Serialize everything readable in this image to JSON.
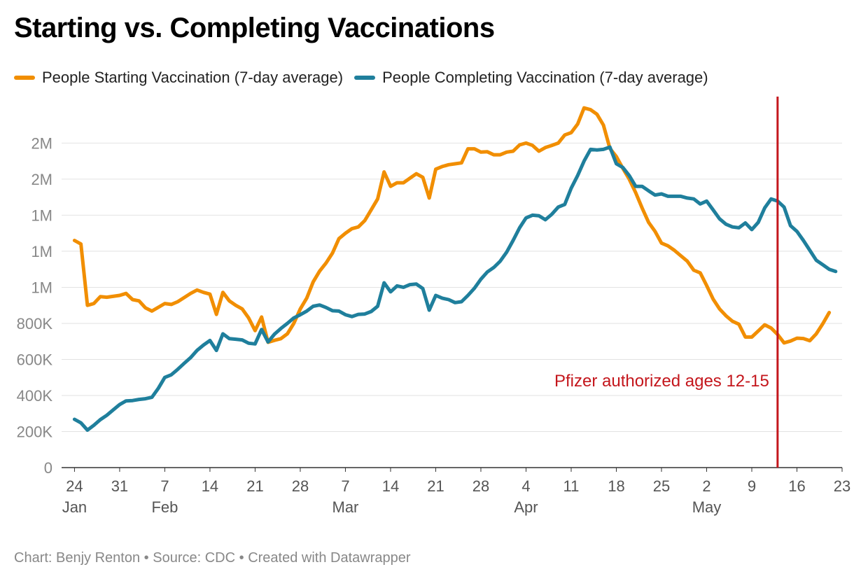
{
  "title": "Starting vs. Completing Vaccinations",
  "footer": {
    "prefix": "Chart: Benjy Renton",
    "sep": "•",
    "source": "Source: CDC",
    "credit": "Created with Datawrapper"
  },
  "colors": {
    "starting": "#f18e00",
    "completing": "#1f7f9c",
    "marker": "#c4161c",
    "grid": "#e2e2e2"
  },
  "chart_data": {
    "type": "line",
    "title": "Starting vs. Completing Vaccinations",
    "xlabel": "",
    "ylabel": "",
    "x_range": [
      "2021-01-22",
      "2021-05-23"
    ],
    "ylim": [
      0,
      2050000
    ],
    "grid": "horizontal",
    "legend_position": "top-left",
    "y_ticks": [
      {
        "value": 0,
        "label": "0"
      },
      {
        "value": 200000,
        "label": "200K"
      },
      {
        "value": 400000,
        "label": "400K"
      },
      {
        "value": 600000,
        "label": "600K"
      },
      {
        "value": 800000,
        "label": "800K"
      },
      {
        "value": 1000000,
        "label": "1M"
      },
      {
        "value": 1200000,
        "label": "1M"
      },
      {
        "value": 1400000,
        "label": "1M"
      },
      {
        "value": 1600000,
        "label": "2M"
      },
      {
        "value": 1800000,
        "label": "2M"
      }
    ],
    "x_ticks": [
      {
        "date": "2021-01-24",
        "day": "24",
        "month": "Jan"
      },
      {
        "date": "2021-01-31",
        "day": "31",
        "month": ""
      },
      {
        "date": "2021-02-07",
        "day": "7",
        "month": "Feb"
      },
      {
        "date": "2021-02-14",
        "day": "14",
        "month": ""
      },
      {
        "date": "2021-02-21",
        "day": "21",
        "month": ""
      },
      {
        "date": "2021-02-28",
        "day": "28",
        "month": ""
      },
      {
        "date": "2021-03-07",
        "day": "7",
        "month": "Mar"
      },
      {
        "date": "2021-03-14",
        "day": "14",
        "month": ""
      },
      {
        "date": "2021-03-21",
        "day": "21",
        "month": ""
      },
      {
        "date": "2021-03-28",
        "day": "28",
        "month": ""
      },
      {
        "date": "2021-04-04",
        "day": "4",
        "month": "Apr"
      },
      {
        "date": "2021-04-11",
        "day": "11",
        "month": ""
      },
      {
        "date": "2021-04-18",
        "day": "18",
        "month": ""
      },
      {
        "date": "2021-04-25",
        "day": "25",
        "month": ""
      },
      {
        "date": "2021-05-02",
        "day": "2",
        "month": "May"
      },
      {
        "date": "2021-05-09",
        "day": "9",
        "month": ""
      },
      {
        "date": "2021-05-16",
        "day": "16",
        "month": ""
      },
      {
        "date": "2021-05-23",
        "day": "23",
        "month": ""
      }
    ],
    "annotation": {
      "date": "2021-05-13",
      "label": "Pfizer authorized ages 12-15"
    },
    "series": [
      {
        "name": "People Starting Vaccination (7-day average)",
        "color": "#f18e00",
        "points": [
          [
            "2021-01-24",
            1260000
          ],
          [
            "2021-01-25",
            1240000
          ],
          [
            "2021-01-26",
            900000
          ],
          [
            "2021-01-27",
            910000
          ],
          [
            "2021-01-28",
            948000
          ],
          [
            "2021-01-29",
            945000
          ],
          [
            "2021-01-31",
            955000
          ],
          [
            "2021-02-01",
            966000
          ],
          [
            "2021-02-02",
            932000
          ],
          [
            "2021-02-03",
            925000
          ],
          [
            "2021-02-04",
            886000
          ],
          [
            "2021-02-05",
            868000
          ],
          [
            "2021-02-07",
            910000
          ],
          [
            "2021-02-08",
            905000
          ],
          [
            "2021-02-09",
            920000
          ],
          [
            "2021-02-11",
            966000
          ],
          [
            "2021-02-12",
            985000
          ],
          [
            "2021-02-13",
            972000
          ],
          [
            "2021-02-14",
            962000
          ],
          [
            "2021-02-15",
            850000
          ],
          [
            "2021-02-16",
            972000
          ],
          [
            "2021-02-17",
            925000
          ],
          [
            "2021-02-18",
            900000
          ],
          [
            "2021-02-19",
            880000
          ],
          [
            "2021-02-20",
            830000
          ],
          [
            "2021-02-21",
            760000
          ],
          [
            "2021-02-22",
            835000
          ],
          [
            "2021-02-23",
            695000
          ],
          [
            "2021-02-24",
            706000
          ],
          [
            "2021-02-25",
            715000
          ],
          [
            "2021-02-26",
            742000
          ],
          [
            "2021-02-27",
            800000
          ],
          [
            "2021-02-28",
            880000
          ],
          [
            "2021-03-01",
            940000
          ],
          [
            "2021-03-02",
            1030000
          ],
          [
            "2021-03-03",
            1090000
          ],
          [
            "2021-03-04",
            1135000
          ],
          [
            "2021-03-05",
            1190000
          ],
          [
            "2021-03-06",
            1270000
          ],
          [
            "2021-03-07",
            1300000
          ],
          [
            "2021-03-08",
            1325000
          ],
          [
            "2021-03-09",
            1335000
          ],
          [
            "2021-03-10",
            1370000
          ],
          [
            "2021-03-11",
            1430000
          ],
          [
            "2021-03-12",
            1490000
          ],
          [
            "2021-03-13",
            1640000
          ],
          [
            "2021-03-14",
            1560000
          ],
          [
            "2021-03-15",
            1580000
          ],
          [
            "2021-03-16",
            1580000
          ],
          [
            "2021-03-17",
            1605000
          ],
          [
            "2021-03-18",
            1630000
          ],
          [
            "2021-03-19",
            1610000
          ],
          [
            "2021-03-20",
            1495000
          ],
          [
            "2021-03-21",
            1655000
          ],
          [
            "2021-03-22",
            1670000
          ],
          [
            "2021-03-23",
            1680000
          ],
          [
            "2021-03-24",
            1685000
          ],
          [
            "2021-03-25",
            1690000
          ],
          [
            "2021-03-26",
            1768000
          ],
          [
            "2021-03-27",
            1768000
          ],
          [
            "2021-03-28",
            1750000
          ],
          [
            "2021-03-29",
            1752000
          ],
          [
            "2021-03-30",
            1735000
          ],
          [
            "2021-03-31",
            1735000
          ],
          [
            "2021-04-01",
            1750000
          ],
          [
            "2021-04-02",
            1755000
          ],
          [
            "2021-04-03",
            1790000
          ],
          [
            "2021-04-04",
            1800000
          ],
          [
            "2021-04-05",
            1787000
          ],
          [
            "2021-04-06",
            1755000
          ],
          [
            "2021-04-07",
            1775000
          ],
          [
            "2021-04-08",
            1787000
          ],
          [
            "2021-04-09",
            1800000
          ],
          [
            "2021-04-10",
            1845000
          ],
          [
            "2021-04-11",
            1858000
          ],
          [
            "2021-04-12",
            1905000
          ],
          [
            "2021-04-13",
            1995000
          ],
          [
            "2021-04-14",
            1985000
          ],
          [
            "2021-04-15",
            1960000
          ],
          [
            "2021-04-16",
            1900000
          ],
          [
            "2021-04-17",
            1770000
          ],
          [
            "2021-04-18",
            1725000
          ],
          [
            "2021-04-19",
            1660000
          ],
          [
            "2021-04-20",
            1600000
          ],
          [
            "2021-04-21",
            1525000
          ],
          [
            "2021-04-22",
            1440000
          ],
          [
            "2021-04-23",
            1360000
          ],
          [
            "2021-04-24",
            1310000
          ],
          [
            "2021-04-25",
            1245000
          ],
          [
            "2021-04-26",
            1230000
          ],
          [
            "2021-04-27",
            1205000
          ],
          [
            "2021-04-28",
            1175000
          ],
          [
            "2021-04-29",
            1145000
          ],
          [
            "2021-04-30",
            1095000
          ],
          [
            "2021-05-01",
            1080000
          ],
          [
            "2021-05-02",
            1010000
          ],
          [
            "2021-05-03",
            935000
          ],
          [
            "2021-05-04",
            880000
          ],
          [
            "2021-05-05",
            842000
          ],
          [
            "2021-05-06",
            812000
          ],
          [
            "2021-05-07",
            795000
          ],
          [
            "2021-05-08",
            724000
          ],
          [
            "2021-05-09",
            724000
          ],
          [
            "2021-05-10",
            758000
          ],
          [
            "2021-05-11",
            792000
          ],
          [
            "2021-05-12",
            774000
          ],
          [
            "2021-05-13",
            738000
          ],
          [
            "2021-05-14",
            692000
          ],
          [
            "2021-05-15",
            702000
          ],
          [
            "2021-05-16",
            718000
          ],
          [
            "2021-05-17",
            716000
          ],
          [
            "2021-05-18",
            704000
          ],
          [
            "2021-05-19",
            742000
          ],
          [
            "2021-05-20",
            798000
          ],
          [
            "2021-05-21",
            860000
          ]
        ]
      },
      {
        "name": "People Completing Vaccination (7-day average)",
        "color": "#1f7f9c",
        "points": [
          [
            "2021-01-24",
            268000
          ],
          [
            "2021-01-25",
            248000
          ],
          [
            "2021-01-26",
            208000
          ],
          [
            "2021-01-27",
            235000
          ],
          [
            "2021-01-28",
            266000
          ],
          [
            "2021-01-29",
            290000
          ],
          [
            "2021-01-30",
            320000
          ],
          [
            "2021-01-31",
            350000
          ],
          [
            "2021-02-01",
            370000
          ],
          [
            "2021-02-02",
            372000
          ],
          [
            "2021-02-03",
            378000
          ],
          [
            "2021-02-04",
            382000
          ],
          [
            "2021-02-05",
            390000
          ],
          [
            "2021-02-06",
            440000
          ],
          [
            "2021-02-07",
            500000
          ],
          [
            "2021-02-08",
            515000
          ],
          [
            "2021-02-09",
            545000
          ],
          [
            "2021-02-10",
            578000
          ],
          [
            "2021-02-11",
            610000
          ],
          [
            "2021-02-12",
            650000
          ],
          [
            "2021-02-13",
            680000
          ],
          [
            "2021-02-14",
            705000
          ],
          [
            "2021-02-15",
            650000
          ],
          [
            "2021-02-16",
            742000
          ],
          [
            "2021-02-17",
            715000
          ],
          [
            "2021-02-18",
            712000
          ],
          [
            "2021-02-19",
            708000
          ],
          [
            "2021-02-20",
            690000
          ],
          [
            "2021-02-21",
            686000
          ],
          [
            "2021-02-22",
            766000
          ],
          [
            "2021-02-23",
            697000
          ],
          [
            "2021-02-24",
            740000
          ],
          [
            "2021-02-25",
            772000
          ],
          [
            "2021-02-26",
            800000
          ],
          [
            "2021-02-27",
            830000
          ],
          [
            "2021-02-28",
            848000
          ],
          [
            "2021-03-01",
            868000
          ],
          [
            "2021-03-02",
            895000
          ],
          [
            "2021-03-03",
            902000
          ],
          [
            "2021-03-04",
            888000
          ],
          [
            "2021-03-05",
            870000
          ],
          [
            "2021-03-06",
            868000
          ],
          [
            "2021-03-07",
            848000
          ],
          [
            "2021-03-08",
            838000
          ],
          [
            "2021-03-09",
            850000
          ],
          [
            "2021-03-10",
            852000
          ],
          [
            "2021-03-11",
            866000
          ],
          [
            "2021-03-12",
            895000
          ],
          [
            "2021-03-13",
            1025000
          ],
          [
            "2021-03-14",
            975000
          ],
          [
            "2021-03-15",
            1008000
          ],
          [
            "2021-03-16",
            1000000
          ],
          [
            "2021-03-17",
            1015000
          ],
          [
            "2021-03-18",
            1018000
          ],
          [
            "2021-03-19",
            993000
          ],
          [
            "2021-03-20",
            873000
          ],
          [
            "2021-03-21",
            955000
          ],
          [
            "2021-03-22",
            940000
          ],
          [
            "2021-03-23",
            932000
          ],
          [
            "2021-03-24",
            915000
          ],
          [
            "2021-03-25",
            920000
          ],
          [
            "2021-03-26",
            955000
          ],
          [
            "2021-03-27",
            995000
          ],
          [
            "2021-03-28",
            1045000
          ],
          [
            "2021-03-29",
            1085000
          ],
          [
            "2021-03-30",
            1110000
          ],
          [
            "2021-03-31",
            1145000
          ],
          [
            "2021-04-01",
            1195000
          ],
          [
            "2021-04-02",
            1260000
          ],
          [
            "2021-04-03",
            1330000
          ],
          [
            "2021-04-04",
            1385000
          ],
          [
            "2021-04-05",
            1400000
          ],
          [
            "2021-04-06",
            1397000
          ],
          [
            "2021-04-07",
            1375000
          ],
          [
            "2021-04-08",
            1405000
          ],
          [
            "2021-04-09",
            1445000
          ],
          [
            "2021-04-10",
            1460000
          ],
          [
            "2021-04-11",
            1550000
          ],
          [
            "2021-04-12",
            1620000
          ],
          [
            "2021-04-13",
            1700000
          ],
          [
            "2021-04-14",
            1765000
          ],
          [
            "2021-04-15",
            1762000
          ],
          [
            "2021-04-16",
            1765000
          ],
          [
            "2021-04-17",
            1778000
          ],
          [
            "2021-04-18",
            1685000
          ],
          [
            "2021-04-19",
            1665000
          ],
          [
            "2021-04-20",
            1620000
          ],
          [
            "2021-04-21",
            1560000
          ],
          [
            "2021-04-22",
            1560000
          ],
          [
            "2021-04-23",
            1535000
          ],
          [
            "2021-04-24",
            1512000
          ],
          [
            "2021-04-25",
            1518000
          ],
          [
            "2021-04-26",
            1505000
          ],
          [
            "2021-04-27",
            1505000
          ],
          [
            "2021-04-28",
            1505000
          ],
          [
            "2021-04-29",
            1495000
          ],
          [
            "2021-04-30",
            1490000
          ],
          [
            "2021-05-01",
            1462000
          ],
          [
            "2021-05-02",
            1478000
          ],
          [
            "2021-05-03",
            1430000
          ],
          [
            "2021-05-04",
            1380000
          ],
          [
            "2021-05-05",
            1350000
          ],
          [
            "2021-05-06",
            1335000
          ],
          [
            "2021-05-07",
            1330000
          ],
          [
            "2021-05-08",
            1357000
          ],
          [
            "2021-05-09",
            1320000
          ],
          [
            "2021-05-10",
            1360000
          ],
          [
            "2021-05-11",
            1440000
          ],
          [
            "2021-05-12",
            1490000
          ],
          [
            "2021-05-13",
            1478000
          ],
          [
            "2021-05-14",
            1445000
          ],
          [
            "2021-05-15",
            1342000
          ],
          [
            "2021-05-16",
            1310000
          ],
          [
            "2021-05-17",
            1260000
          ],
          [
            "2021-05-18",
            1205000
          ],
          [
            "2021-05-19",
            1150000
          ],
          [
            "2021-05-20",
            1125000
          ],
          [
            "2021-05-21",
            1100000
          ],
          [
            "2021-05-22",
            1088000
          ]
        ]
      }
    ]
  }
}
